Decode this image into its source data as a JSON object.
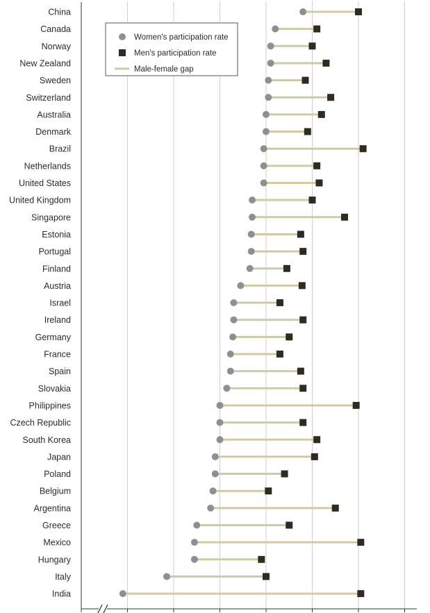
{
  "chart_data": {
    "type": "dumbbell",
    "legend": {
      "placement": "top-left",
      "items": [
        {
          "key": "women",
          "label": "Women's participation rate",
          "marker": "circle",
          "color": "#8f8f93"
        },
        {
          "key": "men",
          "label": "Men's participation rate",
          "marker": "square",
          "color": "#2f2a24"
        },
        {
          "key": "gap",
          "label": "Male-female gap",
          "marker": "line",
          "color": "#cfcba5"
        }
      ]
    },
    "x_range": [
      0,
      7
    ],
    "grid": true,
    "axis_break": true,
    "categories": [
      "China",
      "Canada",
      "Norway",
      "New Zealand",
      "Sweden",
      "Switzerland",
      "Australia",
      "Denmark",
      "Brazil",
      "Netherlands",
      "United States",
      "United Kingdom",
      "Singapore",
      "Estonia",
      "Portugal",
      "Finland",
      "Austria",
      "Israel",
      "Ireland",
      "Germany",
      "France",
      "Spain",
      "Slovakia",
      "Philippines",
      "Czech Republic",
      "South Korea",
      "Japan",
      "Poland",
      "Belgium",
      "Argentina",
      "Greece",
      "Mexico",
      "Hungary",
      "Italy",
      "India"
    ],
    "series": [
      {
        "name": "Women's participation rate",
        "values": [
          4.8,
          4.2,
          4.1,
          4.1,
          4.05,
          4.05,
          4.0,
          4.0,
          3.95,
          3.95,
          3.95,
          3.7,
          3.7,
          3.68,
          3.68,
          3.65,
          3.45,
          3.3,
          3.3,
          3.28,
          3.23,
          3.23,
          3.15,
          3.0,
          3.0,
          3.0,
          2.9,
          2.9,
          2.85,
          2.8,
          2.5,
          2.45,
          2.45,
          1.85,
          0.9
        ]
      },
      {
        "name": "Men's participation rate",
        "values": [
          6.0,
          5.1,
          5.0,
          5.3,
          4.85,
          5.4,
          5.2,
          4.9,
          6.1,
          5.1,
          5.15,
          5.0,
          5.7,
          4.75,
          4.8,
          4.45,
          4.78,
          4.3,
          4.8,
          4.5,
          4.3,
          4.75,
          4.8,
          5.95,
          4.8,
          5.1,
          5.05,
          4.4,
          4.05,
          5.5,
          4.5,
          6.05,
          3.9,
          4.0,
          6.05
        ]
      }
    ],
    "colors": {
      "women": "#8f8f93",
      "men": "#2f2a24",
      "gap": "#cfcba5",
      "grid": "#cfcfcf",
      "axis": "#333333"
    }
  }
}
